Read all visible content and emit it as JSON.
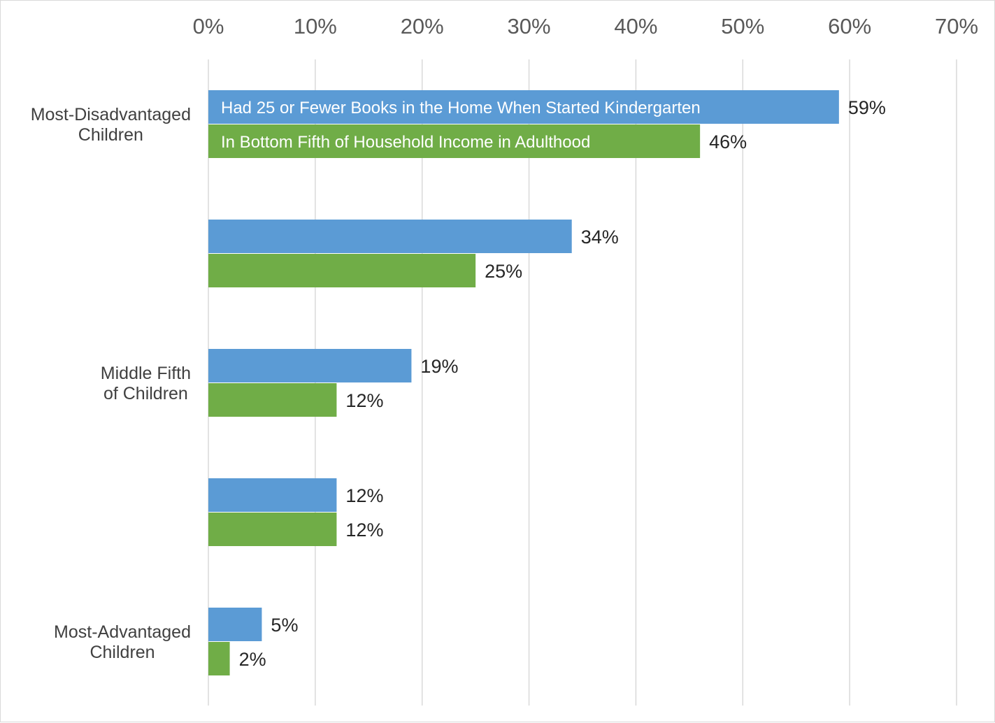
{
  "chart_data": {
    "type": "bar",
    "orientation": "horizontal",
    "title": "",
    "xlabel": "",
    "ylabel": "",
    "xlim": [
      0,
      70
    ],
    "x_ticks": [
      0,
      10,
      20,
      30,
      40,
      50,
      60,
      70
    ],
    "tick_labels": [
      "0%",
      "10%",
      "20%",
      "30%",
      "40%",
      "50%",
      "60%",
      "70%"
    ],
    "tick_position": "top",
    "grid": true,
    "legend_placement": "inside bars of first category",
    "categories": [
      "Most-Disadvantaged Children",
      "",
      "Middle Fifth of Children",
      "",
      "Most-Advantaged Children"
    ],
    "category_label_lines": [
      [
        "Most-Disadvantaged",
        "Children"
      ],
      [],
      [
        "Middle Fifth",
        "of Children"
      ],
      [],
      [
        "Most-Advantaged",
        "Children"
      ]
    ],
    "series": [
      {
        "name": "Had 25 or Fewer Books in the Home When Started Kindergarten",
        "color": "#5b9bd5",
        "values": [
          59,
          34,
          19,
          12,
          5
        ],
        "data_labels": [
          "59%",
          "34%",
          "19%",
          "12%",
          "5%"
        ]
      },
      {
        "name": "In Bottom Fifth of Household Income in Adulthood",
        "color": "#70ad47",
        "values": [
          46,
          25,
          12,
          12,
          2
        ],
        "data_labels": [
          "46%",
          "25%",
          "12%",
          "12%",
          "2%"
        ]
      }
    ]
  }
}
